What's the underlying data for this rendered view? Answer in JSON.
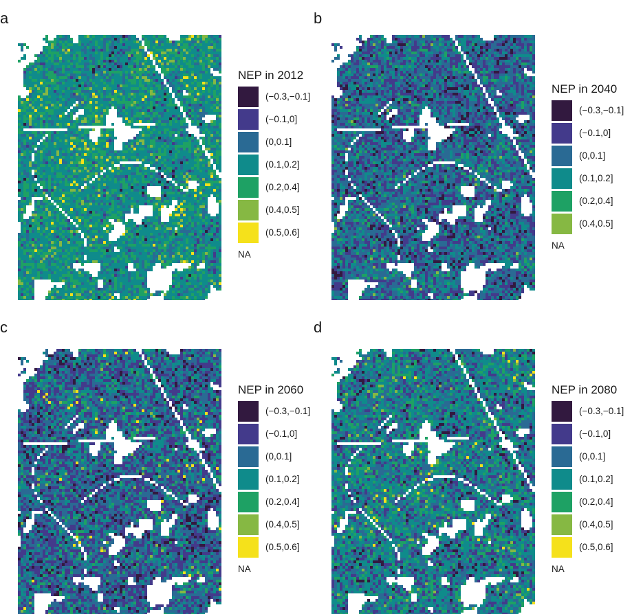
{
  "figure": {
    "panels": [
      {
        "letter": "a",
        "legend_title": "NEP in 2012",
        "legend_items": [
          {
            "label": "(−0.3,−0.1]",
            "color": "#32193f"
          },
          {
            "label": "(−0.1,0]",
            "color": "#433a8b"
          },
          {
            "label": "(0,0.1]",
            "color": "#2a6a94"
          },
          {
            "label": "(0.1,0.2]",
            "color": "#0f8b8b"
          },
          {
            "label": "(0.2,0.4]",
            "color": "#1ea164"
          },
          {
            "label": "(0.4,0.5]",
            "color": "#86b843"
          },
          {
            "label": "(0.5,0.6]",
            "color": "#f5e11b"
          }
        ],
        "na_label": "NA"
      },
      {
        "letter": "b",
        "legend_title": "NEP in 2040",
        "legend_items": [
          {
            "label": "(−0.3,−0.1]",
            "color": "#32193f"
          },
          {
            "label": "(−0.1,0]",
            "color": "#433a8b"
          },
          {
            "label": "(0,0.1]",
            "color": "#2a6a94"
          },
          {
            "label": "(0.1,0.2]",
            "color": "#0f8b8b"
          },
          {
            "label": "(0.2,0.4]",
            "color": "#1ea164"
          },
          {
            "label": "(0.4,0.5]",
            "color": "#86b843"
          }
        ],
        "na_label": "NA"
      },
      {
        "letter": "c",
        "legend_title": "NEP in 2060",
        "legend_items": [
          {
            "label": "(−0.3,−0.1]",
            "color": "#32193f"
          },
          {
            "label": "(−0.1,0]",
            "color": "#433a8b"
          },
          {
            "label": "(0,0.1]",
            "color": "#2a6a94"
          },
          {
            "label": "(0.1,0.2]",
            "color": "#0f8b8b"
          },
          {
            "label": "(0.2,0.4]",
            "color": "#1ea164"
          },
          {
            "label": "(0.4,0.5]",
            "color": "#86b843"
          },
          {
            "label": "(0.5,0.6]",
            "color": "#f5e11b"
          }
        ],
        "na_label": "NA"
      },
      {
        "letter": "d",
        "legend_title": "NEP in 2080",
        "legend_items": [
          {
            "label": "(−0.3,−0.1]",
            "color": "#32193f"
          },
          {
            "label": "(−0.1,0]",
            "color": "#433a8b"
          },
          {
            "label": "(0,0.1]",
            "color": "#2a6a94"
          },
          {
            "label": "(0.1,0.2]",
            "color": "#0f8b8b"
          },
          {
            "label": "(0.2,0.4]",
            "color": "#1ea164"
          },
          {
            "label": "(0.4,0.5]",
            "color": "#86b843"
          },
          {
            "label": "(0.5,0.6]",
            "color": "#f5e11b"
          }
        ],
        "na_label": "NA"
      }
    ]
  },
  "chart_data": [
    {
      "type": "heatmap",
      "title": "NEP in 2012",
      "legend": [
        "(−0.3,−0.1]",
        "(−0.1,0]",
        "(0,0.1]",
        "(0.1,0.2]",
        "(0.2,0.4]",
        "(0.4,0.5]",
        "(0.5,0.6]",
        "NA"
      ],
      "dominant_class": "(0.1,0.2]"
    },
    {
      "type": "heatmap",
      "title": "NEP in 2040",
      "legend": [
        "(−0.3,−0.1]",
        "(−0.1,0]",
        "(0,0.1]",
        "(0.1,0.2]",
        "(0.2,0.4]",
        "(0.4,0.5]",
        "NA"
      ],
      "dominant_class": "(0,0.1]"
    },
    {
      "type": "heatmap",
      "title": "NEP in 2060",
      "legend": [
        "(−0.3,−0.1]",
        "(−0.1,0]",
        "(0,0.1]",
        "(0.1,0.2]",
        "(0.2,0.4]",
        "(0.4,0.5]",
        "(0.5,0.6]",
        "NA"
      ],
      "dominant_class": "(0,0.1]"
    },
    {
      "type": "heatmap",
      "title": "NEP in 2080",
      "legend": [
        "(−0.3,−0.1]",
        "(−0.1,0]",
        "(0,0.1]",
        "(0.1,0.2]",
        "(0.2,0.4]",
        "(0.4,0.5]",
        "(0.5,0.6]",
        "NA"
      ],
      "dominant_class": "(0.1,0.2]"
    }
  ]
}
